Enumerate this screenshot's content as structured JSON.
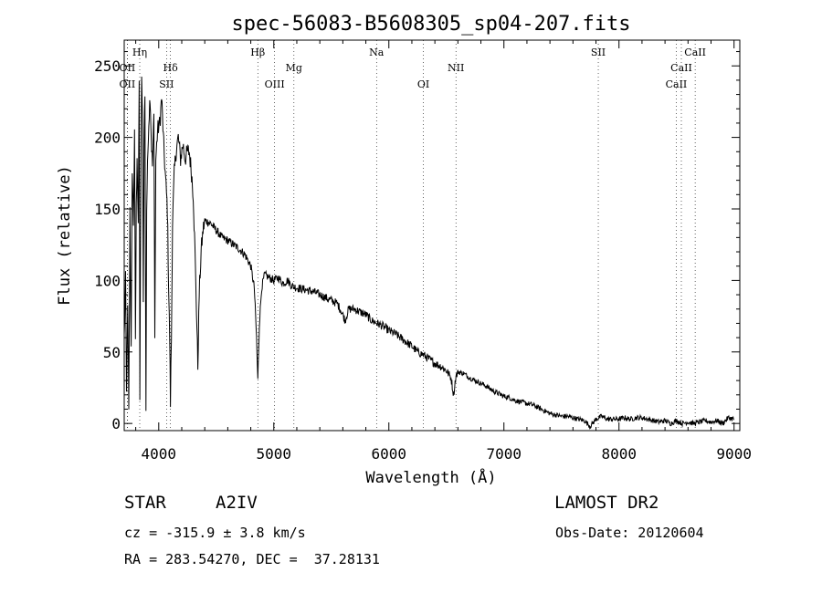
{
  "chart_data": {
    "type": "line",
    "title": "spec-56083-B5608305_sp04-207.fits",
    "xlabel": "Wavelength (Å)",
    "ylabel": "Flux (relative)",
    "xlim": [
      3700,
      9050
    ],
    "ylim": [
      -5,
      268
    ],
    "xticks": [
      4000,
      5000,
      6000,
      7000,
      8000,
      9000
    ],
    "yticks": [
      0,
      50,
      100,
      150,
      200,
      250
    ],
    "grid": false,
    "series": [
      {
        "name": "spectrum",
        "anchors": [
          [
            3700,
            60
          ],
          [
            3712,
            100
          ],
          [
            3720,
            20
          ],
          [
            3730,
            80
          ],
          [
            3740,
            12
          ],
          [
            3750,
            150
          ],
          [
            3760,
            50
          ],
          [
            3770,
            180
          ],
          [
            3780,
            140
          ],
          [
            3790,
            200
          ],
          [
            3798,
            60
          ],
          [
            3805,
            150
          ],
          [
            3812,
            190
          ],
          [
            3822,
            140
          ],
          [
            3830,
            240
          ],
          [
            3836,
            20
          ],
          [
            3845,
            180
          ],
          [
            3852,
            245
          ],
          [
            3860,
            200
          ],
          [
            3866,
            90
          ],
          [
            3873,
            200
          ],
          [
            3880,
            230
          ],
          [
            3889,
            12
          ],
          [
            3895,
            150
          ],
          [
            3910,
            205
          ],
          [
            3925,
            230
          ],
          [
            3935,
            200
          ],
          [
            3945,
            180
          ],
          [
            3958,
            215
          ],
          [
            3966,
            66
          ],
          [
            3975,
            185
          ],
          [
            3990,
            205
          ],
          [
            4010,
            210
          ],
          [
            4025,
            228
          ],
          [
            4040,
            200
          ],
          [
            4060,
            170
          ],
          [
            4075,
            150
          ],
          [
            4085,
            100
          ],
          [
            4095,
            60
          ],
          [
            4102,
            15
          ],
          [
            4110,
            60
          ],
          [
            4120,
            140
          ],
          [
            4135,
            175
          ],
          [
            4150,
            190
          ],
          [
            4170,
            200
          ],
          [
            4190,
            185
          ],
          [
            4210,
            195
          ],
          [
            4230,
            185
          ],
          [
            4250,
            190
          ],
          [
            4265,
            190
          ],
          [
            4285,
            175
          ],
          [
            4300,
            160
          ],
          [
            4315,
            120
          ],
          [
            4328,
            80
          ],
          [
            4340,
            40
          ],
          [
            4352,
            90
          ],
          [
            4368,
            120
          ],
          [
            4385,
            135
          ],
          [
            4400,
            142
          ],
          [
            4450,
            140
          ],
          [
            4500,
            135
          ],
          [
            4550,
            130
          ],
          [
            4600,
            128
          ],
          [
            4650,
            125
          ],
          [
            4700,
            122
          ],
          [
            4750,
            118
          ],
          [
            4800,
            110
          ],
          [
            4830,
            95
          ],
          [
            4850,
            60
          ],
          [
            4861,
            30
          ],
          [
            4875,
            70
          ],
          [
            4895,
            95
          ],
          [
            4920,
            104
          ],
          [
            4960,
            102
          ],
          [
            5000,
            100
          ],
          [
            5040,
            102
          ],
          [
            5080,
            98
          ],
          [
            5120,
            100
          ],
          [
            5160,
            96
          ],
          [
            5200,
            95
          ],
          [
            5250,
            94
          ],
          [
            5300,
            93
          ],
          [
            5350,
            92
          ],
          [
            5400,
            90
          ],
          [
            5450,
            88
          ],
          [
            5500,
            86
          ],
          [
            5550,
            84
          ],
          [
            5590,
            78
          ],
          [
            5620,
            72
          ],
          [
            5650,
            80
          ],
          [
            5700,
            80
          ],
          [
            5750,
            78
          ],
          [
            5800,
            76
          ],
          [
            5850,
            72
          ],
          [
            5900,
            70
          ],
          [
            5950,
            68
          ],
          [
            6000,
            65
          ],
          [
            6050,
            63
          ],
          [
            6100,
            60
          ],
          [
            6150,
            57
          ],
          [
            6200,
            54
          ],
          [
            6250,
            50
          ],
          [
            6300,
            48
          ],
          [
            6350,
            45
          ],
          [
            6400,
            42
          ],
          [
            6450,
            40
          ],
          [
            6500,
            37
          ],
          [
            6540,
            32
          ],
          [
            6563,
            20
          ],
          [
            6580,
            32
          ],
          [
            6600,
            36
          ],
          [
            6650,
            35
          ],
          [
            6700,
            32
          ],
          [
            6750,
            30
          ],
          [
            6800,
            28
          ],
          [
            6850,
            26
          ],
          [
            6900,
            23
          ],
          [
            6950,
            21
          ],
          [
            7000,
            19
          ],
          [
            7050,
            18
          ],
          [
            7100,
            16
          ],
          [
            7150,
            15
          ],
          [
            7200,
            14
          ],
          [
            7250,
            13
          ],
          [
            7300,
            11
          ],
          [
            7350,
            9
          ],
          [
            7400,
            7
          ],
          [
            7450,
            6
          ],
          [
            7500,
            5
          ],
          [
            7550,
            5
          ],
          [
            7600,
            4
          ],
          [
            7650,
            3
          ],
          [
            7700,
            2
          ],
          [
            7750,
            -2
          ],
          [
            7800,
            3
          ],
          [
            7850,
            5
          ],
          [
            7900,
            3
          ],
          [
            7950,
            3
          ],
          [
            8000,
            3
          ],
          [
            8050,
            4
          ],
          [
            8100,
            3
          ],
          [
            8150,
            4
          ],
          [
            8200,
            4
          ],
          [
            8250,
            3
          ],
          [
            8300,
            2
          ],
          [
            8350,
            1
          ],
          [
            8400,
            2
          ],
          [
            8450,
            0
          ],
          [
            8500,
            2
          ],
          [
            8550,
            0
          ],
          [
            8600,
            1
          ],
          [
            8650,
            0
          ],
          [
            8700,
            1
          ],
          [
            8750,
            2
          ],
          [
            8800,
            1
          ],
          [
            8850,
            2
          ],
          [
            8900,
            0
          ],
          [
            8950,
            4
          ],
          [
            9000,
            3
          ]
        ],
        "noise_amplitude": 6
      }
    ],
    "annotations": [
      {
        "text": "Hη",
        "x": 3835,
        "row": 0
      },
      {
        "text": "OII",
        "x": 3727,
        "row": 1
      },
      {
        "text": "Hδ",
        "x": 4102,
        "row": 1
      },
      {
        "text": "Hβ",
        "x": 4861,
        "row": 0
      },
      {
        "text": "Mg",
        "x": 5175,
        "row": 1
      },
      {
        "text": "Na",
        "x": 5893,
        "row": 0
      },
      {
        "text": "NII",
        "x": 6583,
        "row": 1
      },
      {
        "text": "SII",
        "x": 7820,
        "row": 0
      },
      {
        "text": "CaII",
        "x": 8662,
        "row": 0
      },
      {
        "text": "CaII",
        "x": 8542,
        "row": 1
      },
      {
        "text": "OII",
        "x": 3727,
        "row": 2
      },
      {
        "text": "SII",
        "x": 4068,
        "row": 2
      },
      {
        "text": "OIII",
        "x": 5007,
        "row": 2
      },
      {
        "text": "OI",
        "x": 6300,
        "row": 2
      },
      {
        "text": "CaII",
        "x": 8498,
        "row": 2
      }
    ]
  },
  "info": {
    "object_type": "STAR",
    "subclass": "A2IV",
    "survey": "LAMOST DR2",
    "redshift": "cz = -315.9 ± 3.8 km/s",
    "obs_date": "Obs-Date: 20120604",
    "coords": "RA = 283.54270, DEC =  37.28131"
  }
}
